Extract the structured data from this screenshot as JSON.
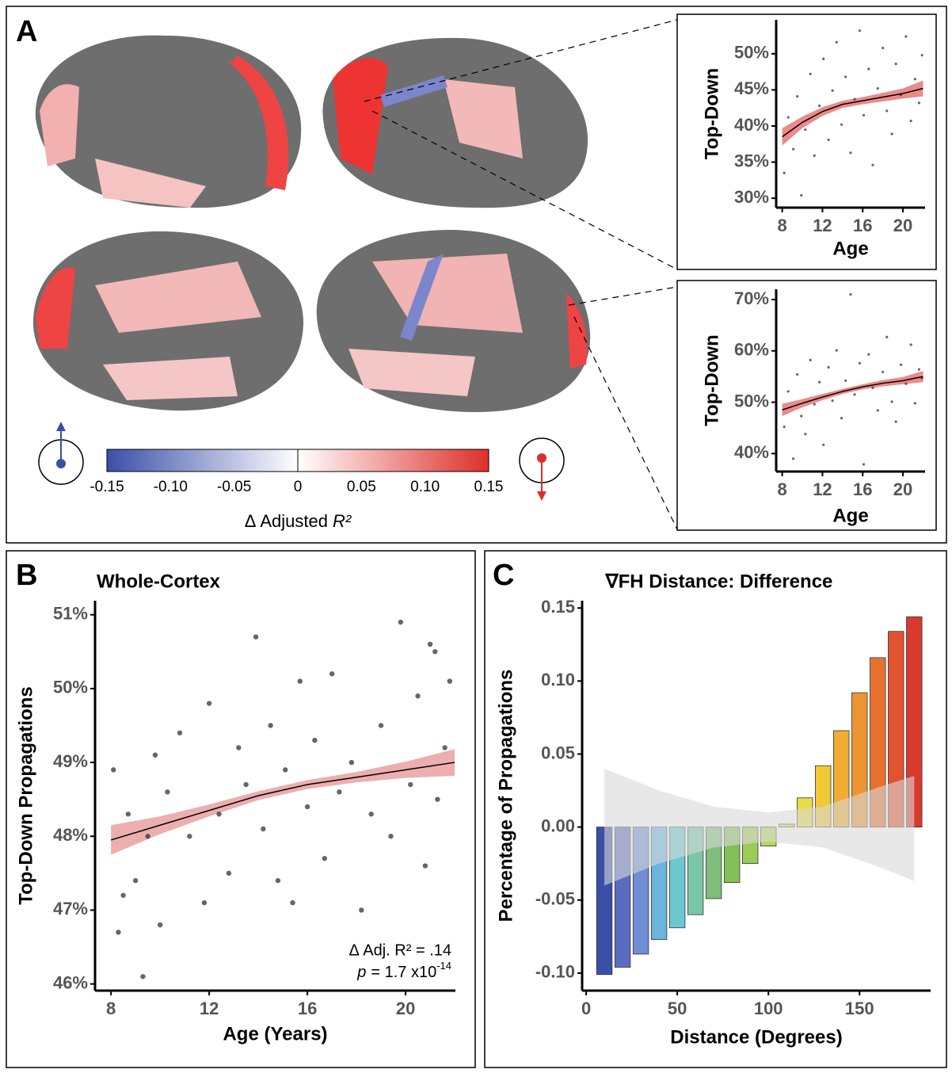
{
  "panel_labels": [
    "A",
    "B",
    "C"
  ],
  "chart_data": [
    {
      "type": "scatter",
      "ylabel": "Top-Down",
      "xlabel": "Age",
      "xlim": [
        7.4,
        22.2
      ],
      "xticks": [
        8,
        12,
        16,
        20
      ],
      "ylim": [
        28.7,
        54.7
      ],
      "yticks": [
        {
          "value": 30,
          "label": "30%"
        },
        {
          "value": 35,
          "label": "35%"
        },
        {
          "value": 40,
          "label": "40%"
        },
        {
          "value": 45,
          "label": "45%"
        },
        {
          "value": 50,
          "label": "50%"
        }
      ],
      "points": {
        "x": [
          8.2,
          8.6,
          9.1,
          9.5,
          9.9,
          10.3,
          10.8,
          11.2,
          11.7,
          12.1,
          12.6,
          13.0,
          13.4,
          13.9,
          14.3,
          14.8,
          15.2,
          15.7,
          16.1,
          16.6,
          17.0,
          17.5,
          18.0,
          18.4,
          18.9,
          19.3,
          19.8,
          20.3,
          20.8,
          21.2,
          21.6,
          21.9
        ],
        "y": [
          33.5,
          41.2,
          36.8,
          44.1,
          30.4,
          39.5,
          47.2,
          35.9,
          42.8,
          49.3,
          38.1,
          44.9,
          51.6,
          40.2,
          46.8,
          36.3,
          43.7,
          53.2,
          41.5,
          47.9,
          34.6,
          45.2,
          50.8,
          42.1,
          38.9,
          48.6,
          44.3,
          52.4,
          40.7,
          46.5,
          43.2,
          49.8
        ]
      },
      "fit": {
        "x": [
          8,
          10,
          12,
          14,
          16,
          18,
          20,
          22
        ],
        "y": [
          38.5,
          40.5,
          42,
          43,
          43.5,
          44,
          44.5,
          45.2
        ],
        "lower": [
          37.3,
          39.7,
          41.4,
          42.5,
          43,
          43.4,
          43.8,
          44.1
        ],
        "upper": [
          39.7,
          41.3,
          42.6,
          43.5,
          44,
          44.6,
          45.2,
          46.3
        ]
      },
      "color": "#e03c3c"
    },
    {
      "type": "scatter",
      "ylabel": "Top-Down",
      "xlabel": "Age",
      "xlim": [
        7.4,
        22.2
      ],
      "xticks": [
        8,
        12,
        16,
        20
      ],
      "ylim": [
        36.5,
        72
      ],
      "yticks": [
        {
          "value": 40,
          "label": "40%"
        },
        {
          "value": 50,
          "label": "50%"
        },
        {
          "value": 60,
          "label": "60%"
        },
        {
          "value": 70,
          "label": "70%"
        }
      ],
      "points": {
        "x": [
          8.2,
          8.6,
          9.1,
          9.5,
          9.9,
          10.3,
          10.8,
          11.2,
          11.7,
          12.1,
          12.6,
          13.0,
          13.4,
          13.9,
          14.3,
          14.8,
          15.2,
          15.7,
          16.1,
          16.6,
          17.0,
          17.5,
          18.0,
          18.4,
          18.9,
          19.3,
          19.8,
          20.3,
          20.8,
          21.2,
          21.6,
          21.9
        ],
        "y": [
          45.2,
          52.1,
          39.0,
          55.4,
          47.3,
          43.8,
          58.2,
          49.6,
          53.9,
          41.7,
          56.8,
          50.3,
          60.1,
          46.9,
          54.2,
          71.0,
          51.5,
          57.6,
          37.9,
          59.3,
          52.8,
          48.4,
          55.9,
          62.7,
          50.1,
          46.2,
          57.3,
          53.6,
          61.2,
          49.8,
          56.4,
          54.7
        ]
      },
      "fit": {
        "x": [
          8,
          10,
          12,
          14,
          16,
          18,
          20,
          22
        ],
        "y": [
          48.5,
          49.8,
          51,
          52.1,
          53,
          53.7,
          54.2,
          55
        ],
        "lower": [
          47.3,
          49,
          50.4,
          51.6,
          52.5,
          53.1,
          53.5,
          53.9
        ],
        "upper": [
          49.7,
          50.6,
          51.6,
          52.6,
          53.5,
          54.3,
          54.9,
          56.1
        ]
      },
      "color": "#e03c3c"
    },
    {
      "type": "scatter",
      "title": "Whole-Cortex",
      "ylabel": "Top-Down Propagations",
      "xlabel": "Age (Years)",
      "xlim": [
        7.35,
        22.03
      ],
      "xticks": [
        8,
        12,
        16,
        20
      ],
      "ylim": [
        45.91,
        51.19
      ],
      "yticks": [
        {
          "value": 46,
          "label": "46%"
        },
        {
          "value": 47,
          "label": "47%"
        },
        {
          "value": 48,
          "label": "48%"
        },
        {
          "value": 49,
          "label": "49%"
        },
        {
          "value": 50,
          "label": "50%"
        },
        {
          "value": 51,
          "label": "51%"
        }
      ],
      "points": {
        "x": [
          8.1,
          8.3,
          8.5,
          8.7,
          9.0,
          9.3,
          9.5,
          9.8,
          10.0,
          10.3,
          10.8,
          11.2,
          11.8,
          12.0,
          12.4,
          12.8,
          13.2,
          13.5,
          13.9,
          14.2,
          14.5,
          14.8,
          15.1,
          15.4,
          15.7,
          16.0,
          16.3,
          16.7,
          17.0,
          17.3,
          17.8,
          18.2,
          18.6,
          19.0,
          19.4,
          19.8,
          20.2,
          20.5,
          20.8,
          21.0,
          21.2,
          21.3,
          21.6,
          21.8
        ],
        "y": [
          48.9,
          46.7,
          47.2,
          48.3,
          47.4,
          46.1,
          48.0,
          49.1,
          46.8,
          48.6,
          49.4,
          48.0,
          47.1,
          49.8,
          48.3,
          47.5,
          49.2,
          48.7,
          50.7,
          48.1,
          49.5,
          47.4,
          48.9,
          47.1,
          50.1,
          48.4,
          49.3,
          47.7,
          50.2,
          48.6,
          49.0,
          47.0,
          48.3,
          49.5,
          48.0,
          50.9,
          48.7,
          49.9,
          47.6,
          50.6,
          50.5,
          48.5,
          49.2,
          50.1
        ]
      },
      "fit": {
        "x": [
          8,
          10,
          12,
          14,
          16,
          18,
          20,
          22
        ],
        "y": [
          47.95,
          48.15,
          48.35,
          48.55,
          48.7,
          48.8,
          48.9,
          49.0
        ],
        "lower": [
          47.75,
          48.03,
          48.27,
          48.49,
          48.64,
          48.73,
          48.79,
          48.82
        ],
        "upper": [
          48.15,
          48.27,
          48.43,
          48.61,
          48.76,
          48.87,
          49.01,
          49.18
        ]
      },
      "color": "#e07878",
      "annotations": [
        "Δ Adj. R² = .14",
        "p",
        "= 1.7 x10",
        "-14"
      ]
    },
    {
      "type": "bar",
      "title": "∇FH Distance: Difference",
      "ylabel": "Percentage of Propagations",
      "xlabel": "Distance (Degrees)",
      "xlim": [
        -2.2,
        189
      ],
      "xticks": [
        0,
        50,
        100,
        150
      ],
      "ylim": [
        -0.112,
        0.155
      ],
      "yticks": [
        {
          "value": -0.1,
          "label": "-0.10"
        },
        -0.05,
        {
          "value": 0,
          "label": "0.00"
        },
        0.05,
        {
          "value": 0.1,
          "label": "0.10"
        },
        0.15
      ],
      "x": [
        10,
        20,
        30,
        40,
        50,
        60,
        70,
        80,
        90,
        100,
        110,
        120,
        130,
        140,
        150,
        160,
        170,
        180
      ],
      "values": [
        -0.101,
        -0.096,
        -0.087,
        -0.077,
        -0.069,
        -0.06,
        -0.049,
        -0.038,
        -0.025,
        -0.013,
        0.002,
        0.02,
        0.042,
        0.066,
        0.092,
        0.116,
        0.134,
        0.144
      ],
      "colors": [
        "#3b4fa8",
        "#5a6cc0",
        "#6f8ed4",
        "#6ab4de",
        "#6cc7cf",
        "#79c6a8",
        "#7dbf7a",
        "#84c05a",
        "#9ccc55",
        "#b8d65a",
        "#d6df5a",
        "#e8dc4a",
        "#f1c935",
        "#f0ad32",
        "#ed9432",
        "#e77230",
        "#e2532f",
        "#d93a2e"
      ],
      "band": {
        "x": [
          10,
          40,
          70,
          100,
          130,
          160,
          180
        ],
        "upper": [
          0.04,
          0.025,
          0.014,
          0.01,
          0.014,
          0.027,
          0.035
        ],
        "lower": [
          -0.04,
          -0.025,
          -0.014,
          -0.01,
          -0.014,
          -0.027,
          -0.037
        ]
      }
    },
    {
      "type": "colorbar",
      "xlim": [
        -0.15,
        0.15
      ],
      "xticks": [
        {
          "value": -0.15,
          "label": "-0.15"
        },
        {
          "value": -0.1,
          "label": "-0.10"
        },
        {
          "value": -0.05,
          "label": "-0.05"
        },
        0,
        0.05,
        {
          "value": 0.1,
          "label": "0.10"
        },
        0.15
      ],
      "xlabel": [
        "Δ Adjusted ",
        "R²"
      ],
      "colors": [
        "#3a4fa8",
        "#ffffff",
        "#dd2f2a"
      ]
    }
  ]
}
